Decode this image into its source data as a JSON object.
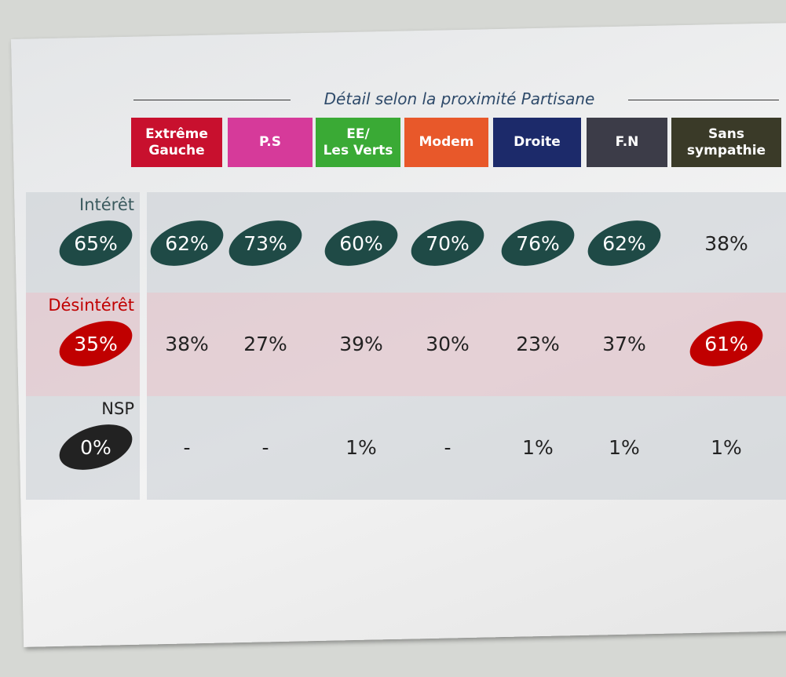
{
  "subtitle": "Détail selon la proximité Partisane",
  "columns": [
    {
      "lines": [
        "Extrême",
        "Gauche"
      ]
    },
    {
      "lines": [
        "P.S"
      ]
    },
    {
      "lines": [
        "EE/",
        "Les Verts"
      ]
    },
    {
      "lines": [
        "Modem"
      ]
    },
    {
      "lines": [
        "Droite"
      ]
    },
    {
      "lines": [
        "F.N"
      ]
    },
    {
      "lines": [
        "Sans",
        "sympathie"
      ]
    }
  ],
  "rows": [
    {
      "label": "Intérêt",
      "total": {
        "text": "65%",
        "badge": true
      },
      "cells": [
        {
          "text": "62%",
          "badge": true
        },
        {
          "text": "73%",
          "badge": true
        },
        {
          "text": "60%",
          "badge": true
        },
        {
          "text": "70%",
          "badge": true
        },
        {
          "text": "76%",
          "badge": true
        },
        {
          "text": "62%",
          "badge": true
        },
        {
          "text": "38%",
          "badge": false
        }
      ]
    },
    {
      "label": "Désintérêt",
      "total": {
        "text": "35%",
        "badge": true
      },
      "cells": [
        {
          "text": "38%",
          "badge": false
        },
        {
          "text": "27%",
          "badge": false
        },
        {
          "text": "39%",
          "badge": false
        },
        {
          "text": "30%",
          "badge": false
        },
        {
          "text": "23%",
          "badge": false
        },
        {
          "text": "37%",
          "badge": false
        },
        {
          "text": "61%",
          "badge": true
        }
      ]
    },
    {
      "label": "NSP",
      "total": {
        "text": "0%",
        "badge": true
      },
      "cells": [
        {
          "text": "-",
          "badge": false
        },
        {
          "text": "-",
          "badge": false
        },
        {
          "text": "1%",
          "badge": false
        },
        {
          "text": "-",
          "badge": false
        },
        {
          "text": "1%",
          "badge": false
        },
        {
          "text": "1%",
          "badge": false
        },
        {
          "text": "1%",
          "badge": false
        }
      ]
    }
  ]
}
